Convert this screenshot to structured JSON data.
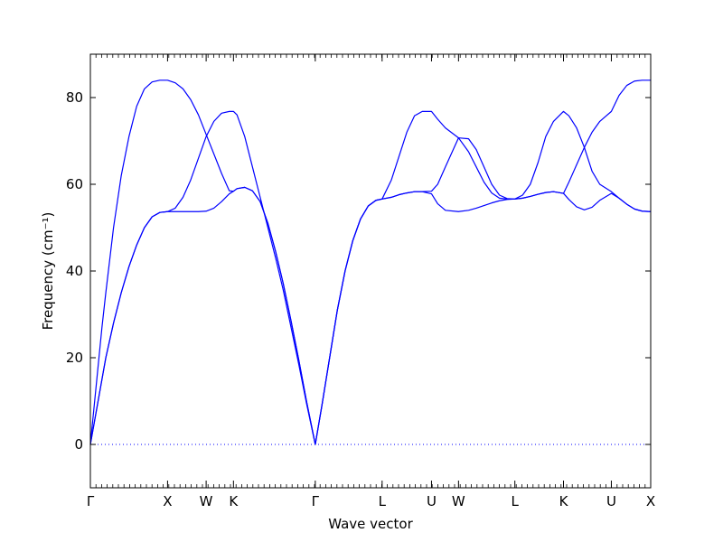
{
  "chart_data": {
    "type": "line",
    "title": "",
    "xlabel": "Wave vector",
    "ylabel": "Frequency (cm⁻¹)",
    "ylim": [
      -10,
      90
    ],
    "yticks": [
      0,
      20,
      40,
      60,
      80
    ],
    "xlim": [
      0,
      7.26
    ],
    "kpoints": [
      {
        "label": "Γ",
        "x": 0
      },
      {
        "label": "X",
        "x": 1.0
      },
      {
        "label": "W",
        "x": 1.5
      },
      {
        "label": "K",
        "x": 1.854
      },
      {
        "label": "Γ",
        "x": 2.914
      },
      {
        "label": "L",
        "x": 3.78
      },
      {
        "label": "U",
        "x": 4.42
      },
      {
        "label": "W",
        "x": 4.77
      },
      {
        "label": "L",
        "x": 5.5
      },
      {
        "label": "K",
        "x": 6.13
      },
      {
        "label": "U",
        "x": 6.75
      },
      {
        "label": "X",
        "x": 7.26
      }
    ],
    "line_color": "#0000ff",
    "grid": false,
    "legend": false,
    "zero_line": {
      "y": 0,
      "style": "dotted"
    },
    "series": [
      {
        "x": [
          0,
          0.05,
          0.1,
          0.15,
          0.2,
          0.3,
          0.4,
          0.5,
          0.6,
          0.7,
          0.8,
          0.9,
          1.0,
          1.1,
          1.2,
          1.3,
          1.4,
          1.5,
          1.6,
          1.7,
          1.8,
          1.854,
          1.9,
          2.0,
          2.1,
          2.2,
          2.3,
          2.4,
          2.5,
          2.6,
          2.7,
          2.8,
          2.914,
          3.0,
          3.1,
          3.2,
          3.3,
          3.4,
          3.5,
          3.6,
          3.7,
          3.78,
          3.9,
          4.0,
          4.1,
          4.2,
          4.3,
          4.42,
          4.5,
          4.6,
          4.77,
          4.9,
          5.0,
          5.1,
          5.2,
          5.3,
          5.4,
          5.5,
          5.6,
          5.7,
          5.8,
          5.9,
          6.0,
          6.13,
          6.2,
          6.3,
          6.4,
          6.5,
          6.6,
          6.75,
          6.85,
          6.95,
          7.05,
          7.15,
          7.26
        ],
        "values": [
          0,
          5,
          10,
          15,
          20,
          28,
          35,
          41,
          46,
          50,
          52.5,
          53.5,
          53.7,
          53.7,
          53.7,
          53.7,
          53.7,
          53.8,
          54.5,
          56,
          57.8,
          58.4,
          59,
          59.3,
          58.5,
          56,
          51,
          44.5,
          37,
          28.5,
          19.5,
          10,
          0,
          9,
          20,
          31,
          40,
          47,
          52,
          55,
          56.3,
          56.6,
          57,
          57.6,
          58,
          58.3,
          58.3,
          57.8,
          55.5,
          54,
          53.7,
          54,
          54.5,
          55.1,
          55.7,
          56.2,
          56.5,
          56.6,
          56.8,
          57.2,
          57.7,
          58.1,
          58.3,
          57.9,
          56.5,
          54.8,
          54.1,
          54.7,
          56.3,
          57.9,
          56.8,
          55.4,
          54.3,
          53.8,
          53.7
        ]
      },
      {
        "x": [
          0,
          0.05,
          0.1,
          0.15,
          0.2,
          0.3,
          0.4,
          0.5,
          0.6,
          0.7,
          0.8,
          0.9,
          1.0,
          1.1,
          1.2,
          1.3,
          1.4,
          1.5,
          1.6,
          1.7,
          1.8,
          1.854,
          1.9,
          2.0,
          2.1,
          2.2,
          2.3,
          2.4,
          2.5,
          2.6,
          2.7,
          2.8,
          2.914,
          3.0,
          3.1,
          3.2,
          3.3,
          3.4,
          3.5,
          3.6,
          3.7,
          3.78,
          3.9,
          4.0,
          4.1,
          4.2,
          4.3,
          4.42,
          4.5,
          4.6,
          4.77,
          4.9,
          5.0,
          5.1,
          5.2,
          5.3,
          5.4,
          5.5,
          5.6,
          5.7,
          5.8,
          5.9,
          6.0,
          6.13,
          6.2,
          6.3,
          6.4,
          6.5,
          6.6,
          6.75,
          6.85,
          6.95,
          7.05,
          7.15,
          7.26
        ],
        "values": [
          0,
          5,
          10,
          15,
          20,
          28,
          35,
          41,
          46,
          50,
          52.5,
          53.5,
          53.7,
          54.5,
          57,
          61,
          66,
          71,
          74.5,
          76.4,
          76.8,
          76.8,
          76,
          71,
          64,
          57,
          50,
          43,
          35.5,
          27,
          18.5,
          9.5,
          0,
          9,
          20,
          31,
          40,
          47,
          52,
          55,
          56.3,
          56.6,
          57,
          57.6,
          58,
          58.3,
          58.3,
          58.4,
          60,
          64,
          70.7,
          70.5,
          68,
          64,
          60,
          57.5,
          56.7,
          56.6,
          57.5,
          60,
          65,
          71,
          74.5,
          76.8,
          75.8,
          73,
          68.5,
          63,
          60,
          58.3,
          56.8,
          55.4,
          54.3,
          53.8,
          53.7
        ]
      },
      {
        "x": [
          0,
          0.05,
          0.1,
          0.15,
          0.2,
          0.3,
          0.4,
          0.5,
          0.6,
          0.7,
          0.8,
          0.9,
          1.0,
          1.1,
          1.2,
          1.3,
          1.4,
          1.5,
          1.6,
          1.7,
          1.8,
          1.854,
          1.9,
          2.0,
          2.1,
          2.2,
          2.3,
          2.4,
          2.5,
          2.6,
          2.7,
          2.8,
          2.914,
          3.0,
          3.1,
          3.2,
          3.3,
          3.4,
          3.5,
          3.6,
          3.7,
          3.78,
          3.9,
          4.0,
          4.1,
          4.2,
          4.3,
          4.42,
          4.5,
          4.6,
          4.77,
          4.9,
          5.0,
          5.1,
          5.2,
          5.3,
          5.4,
          5.5,
          5.6,
          5.7,
          5.8,
          5.9,
          6.0,
          6.13,
          6.2,
          6.3,
          6.4,
          6.5,
          6.6,
          6.75,
          6.85,
          6.95,
          7.05,
          7.15,
          7.26
        ],
        "values": [
          0,
          9,
          18,
          27,
          35,
          50,
          62,
          71,
          78,
          82,
          83.6,
          84,
          84,
          83.4,
          82,
          79.5,
          76,
          71.5,
          67,
          62.5,
          58.5,
          58.4,
          59,
          59.3,
          58.5,
          56,
          51,
          44.5,
          37,
          28.5,
          19.5,
          10,
          0,
          9,
          20,
          31,
          40,
          47,
          52,
          55,
          56.3,
          56.6,
          61,
          66.5,
          72,
          75.8,
          76.8,
          76.8,
          75,
          73,
          70.7,
          67.5,
          64,
          60.5,
          58,
          56.8,
          56.6,
          56.6,
          56.8,
          57.2,
          57.7,
          58.1,
          58.3,
          57.9,
          60.5,
          64.5,
          68.5,
          72,
          74.5,
          76.8,
          80.5,
          82.8,
          83.8,
          84,
          84
        ]
      }
    ]
  }
}
